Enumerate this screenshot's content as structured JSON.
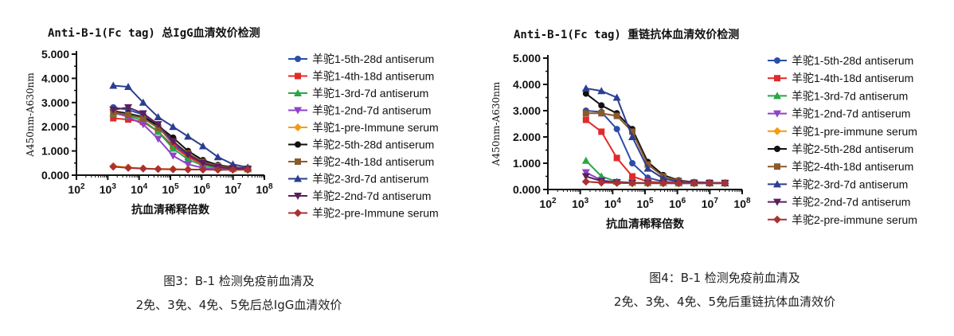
{
  "chart_data": [
    {
      "type": "line",
      "title": "Anti-B-1(Fc tag) 总IgG血清效价检测",
      "xlabel": "抗血清稀释倍数",
      "ylabel": "A450nm-A630nm",
      "xscale": "log",
      "xlim": [
        100,
        100000000
      ],
      "ylim": [
        0,
        5
      ],
      "x_ticks": [
        "2",
        "3",
        "4",
        "5",
        "6",
        "7",
        "8"
      ],
      "y_ticks": [
        "0.000",
        "1.000",
        "2.000",
        "3.000",
        "4.000",
        "5.000"
      ],
      "legend_position": "right",
      "x": [
        1500,
        4500,
        13500,
        40500,
        121500,
        364500,
        1093500,
        3280500,
        9841500,
        29524500
      ],
      "series": [
        {
          "name": "羊驼1-5th-28d antiserum",
          "color": "#2b4fa8",
          "marker": "circle",
          "values": [
            2.8,
            2.7,
            2.5,
            2.0,
            1.3,
            0.8,
            0.5,
            0.35,
            0.3,
            0.28
          ]
        },
        {
          "name": "羊驼1-4th-18d antiserum",
          "color": "#e32929",
          "marker": "square",
          "values": [
            2.35,
            2.3,
            2.2,
            1.8,
            1.2,
            0.75,
            0.45,
            0.32,
            0.28,
            0.25
          ]
        },
        {
          "name": "羊驼1-3rd-7d antiserum",
          "color": "#27a844",
          "marker": "triangle-up",
          "values": [
            2.55,
            2.45,
            2.25,
            1.8,
            1.1,
            0.65,
            0.4,
            0.3,
            0.27,
            0.25
          ]
        },
        {
          "name": "羊驼1-2nd-7d antiserum",
          "color": "#8e44c9",
          "marker": "triangle-down",
          "values": [
            2.6,
            2.4,
            2.1,
            1.5,
            0.8,
            0.45,
            0.3,
            0.26,
            0.24,
            0.23
          ]
        },
        {
          "name": "羊驼1-pre-Immune serum",
          "color": "#f39c12",
          "marker": "diamond",
          "values": [
            0.38,
            0.32,
            0.28,
            0.26,
            0.25,
            0.24,
            0.23,
            0.23,
            0.22,
            0.22
          ]
        },
        {
          "name": "羊驼2-5th-28d antiserum",
          "color": "#111111",
          "marker": "circle",
          "values": [
            2.65,
            2.55,
            2.4,
            2.05,
            1.55,
            1.0,
            0.62,
            0.42,
            0.33,
            0.28
          ]
        },
        {
          "name": "羊驼2-4th-18d antiserum",
          "color": "#8b5a2b",
          "marker": "square",
          "values": [
            2.6,
            2.5,
            2.35,
            1.95,
            1.4,
            0.9,
            0.55,
            0.38,
            0.3,
            0.27
          ]
        },
        {
          "name": "羊驼2-3rd-7d antiserum",
          "color": "#2c3e8f",
          "marker": "triangle-up",
          "values": [
            3.7,
            3.65,
            3.0,
            2.4,
            2.0,
            1.6,
            1.2,
            0.75,
            0.45,
            0.32
          ]
        },
        {
          "name": "羊驼2-2nd-7d antiserum",
          "color": "#5b1f5e",
          "marker": "triangle-down",
          "values": [
            2.7,
            2.8,
            2.55,
            2.1,
            1.4,
            0.85,
            0.5,
            0.33,
            0.28,
            0.25
          ]
        },
        {
          "name": "羊驼2-pre-Immune serum",
          "color": "#a83232",
          "marker": "diamond",
          "values": [
            0.35,
            0.3,
            0.27,
            0.25,
            0.24,
            0.23,
            0.23,
            0.22,
            0.22,
            0.22
          ]
        }
      ]
    },
    {
      "type": "line",
      "title": "Anti-B-1(Fc tag) 重链抗体血清效价检测",
      "xlabel": "抗血清稀释倍数",
      "ylabel": "A450nm-A630nm",
      "xscale": "log",
      "xlim": [
        100,
        100000000
      ],
      "ylim": [
        0,
        5
      ],
      "x_ticks": [
        "2",
        "3",
        "4",
        "5",
        "6",
        "7",
        "8"
      ],
      "y_ticks": [
        "0.000",
        "1.000",
        "2.000",
        "3.000",
        "4.000",
        "5.000"
      ],
      "legend_position": "right",
      "x": [
        1500,
        4500,
        13500,
        40500,
        121500,
        364500,
        1093500,
        3280500,
        9841500,
        29524500
      ],
      "series": [
        {
          "name": "羊驼1-5th-28d antiserum",
          "color": "#2b4fa8",
          "marker": "circle",
          "values": [
            3.0,
            2.95,
            2.3,
            1.0,
            0.45,
            0.3,
            0.27,
            0.26,
            0.25,
            0.25
          ]
        },
        {
          "name": "羊驼1-4th-18d antiserum",
          "color": "#e32929",
          "marker": "square",
          "values": [
            2.65,
            2.2,
            1.2,
            0.5,
            0.3,
            0.27,
            0.26,
            0.25,
            0.25,
            0.25
          ]
        },
        {
          "name": "羊驼1-3rd-7d antiserum",
          "color": "#27a844",
          "marker": "triangle-up",
          "values": [
            1.1,
            0.5,
            0.3,
            0.26,
            0.25,
            0.25,
            0.24,
            0.24,
            0.24,
            0.24
          ]
        },
        {
          "name": "羊驼1-2nd-7d antiserum",
          "color": "#8e44c9",
          "marker": "triangle-down",
          "values": [
            0.65,
            0.35,
            0.28,
            0.25,
            0.25,
            0.24,
            0.24,
            0.24,
            0.24,
            0.24
          ]
        },
        {
          "name": "羊驼1-pre-immune serum",
          "color": "#f39c12",
          "marker": "diamond",
          "values": [
            0.3,
            0.26,
            0.25,
            0.24,
            0.24,
            0.24,
            0.24,
            0.24,
            0.24,
            0.24
          ]
        },
        {
          "name": "羊驼2-5th-28d antiserum",
          "color": "#111111",
          "marker": "circle",
          "values": [
            3.65,
            3.2,
            2.9,
            2.3,
            1.05,
            0.55,
            0.35,
            0.28,
            0.26,
            0.25
          ]
        },
        {
          "name": "羊驼2-4th-18d antiserum",
          "color": "#8b5a2b",
          "marker": "square",
          "values": [
            2.9,
            2.9,
            2.8,
            2.2,
            0.95,
            0.5,
            0.33,
            0.27,
            0.26,
            0.25
          ]
        },
        {
          "name": "羊驼2-3rd-7d antiserum",
          "color": "#2c3e8f",
          "marker": "triangle-up",
          "values": [
            3.85,
            3.75,
            3.5,
            2.0,
            0.8,
            0.42,
            0.3,
            0.27,
            0.26,
            0.25
          ]
        },
        {
          "name": "羊驼2-2nd-7d antiserum",
          "color": "#5b1f5e",
          "marker": "triangle-down",
          "values": [
            0.5,
            0.32,
            0.27,
            0.25,
            0.24,
            0.24,
            0.24,
            0.24,
            0.24,
            0.24
          ]
        },
        {
          "name": "羊驼2-pre-immune serum",
          "color": "#a83232",
          "marker": "diamond",
          "values": [
            0.3,
            0.26,
            0.25,
            0.24,
            0.24,
            0.24,
            0.24,
            0.24,
            0.24,
            0.24
          ]
        }
      ]
    }
  ],
  "captions": [
    {
      "line1": "图3：B-1 检测免疫前血清及",
      "line2": "2免、3免、4免、5免后总IgG血清效价"
    },
    {
      "line1": "图4：B-1 检测免疫前血清及",
      "line2": "2免、3免、4免、5免后重链抗体血清效价"
    }
  ]
}
